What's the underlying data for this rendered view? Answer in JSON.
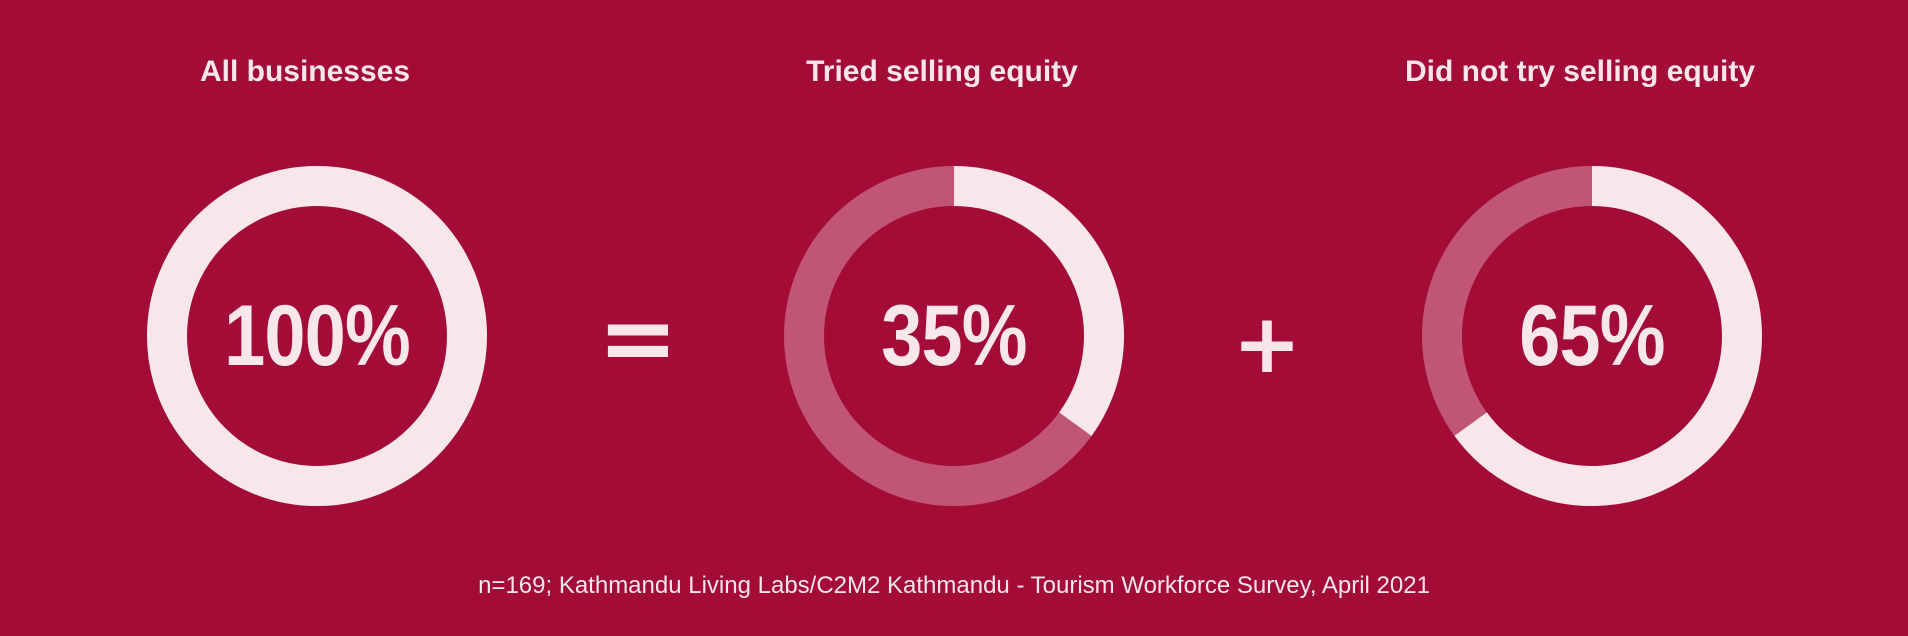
{
  "chart_data": [
    {
      "type": "pie",
      "variant": "donut",
      "title": "All businesses",
      "label": "100%",
      "value": 100,
      "highlight_color": "#f7e6ea",
      "remainder_color": "#c05673"
    },
    {
      "type": "pie",
      "variant": "donut",
      "title": "Tried selling equity",
      "label": "35%",
      "value": 35,
      "highlight_color": "#f7e6ea",
      "remainder_color": "#c05673"
    },
    {
      "type": "pie",
      "variant": "donut",
      "title": "Did not try selling equity",
      "label": "65%",
      "value": 65,
      "highlight_color": "#f7e6ea",
      "remainder_color": "#c05673"
    }
  ],
  "operators": {
    "equals": "=",
    "plus": "+"
  },
  "footnote": "n=169; Kathmandu Living Labs/C2M2 Kathmandu - Tourism Workforce Survey, April 2021",
  "colors": {
    "background": "#a20c37",
    "text": "#f7e6ea"
  }
}
